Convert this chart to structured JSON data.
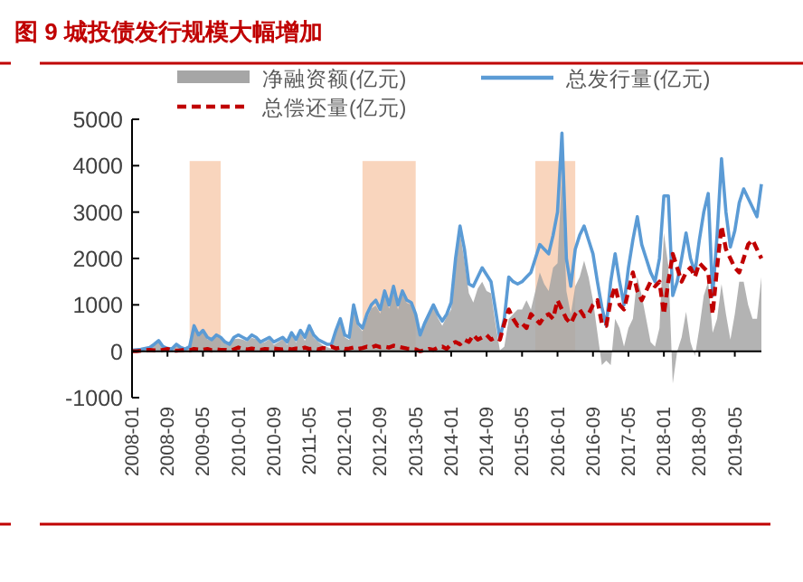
{
  "chart_data": {
    "type": "line",
    "title": "图 9  城投债发行规模大幅增加",
    "x": [
      "2008-01",
      "2008-02",
      "2008-03",
      "2008-04",
      "2008-05",
      "2008-06",
      "2008-07",
      "2008-08",
      "2008-09",
      "2008-10",
      "2008-11",
      "2008-12",
      "2009-01",
      "2009-02",
      "2009-03",
      "2009-04",
      "2009-05",
      "2009-06",
      "2009-07",
      "2009-08",
      "2009-09",
      "2009-10",
      "2009-11",
      "2009-12",
      "2010-01",
      "2010-02",
      "2010-03",
      "2010-04",
      "2010-05",
      "2010-06",
      "2010-07",
      "2010-08",
      "2010-09",
      "2010-10",
      "2010-11",
      "2010-12",
      "2011-01",
      "2011-02",
      "2011-03",
      "2011-04",
      "2011-05",
      "2011-06",
      "2011-07",
      "2011-08",
      "2011-09",
      "2011-10",
      "2011-11",
      "2011-12",
      "2012-01",
      "2012-02",
      "2012-03",
      "2012-04",
      "2012-05",
      "2012-06",
      "2012-07",
      "2012-08",
      "2012-09",
      "2012-10",
      "2012-11",
      "2012-12",
      "2013-01",
      "2013-02",
      "2013-03",
      "2013-04",
      "2013-05",
      "2013-06",
      "2013-07",
      "2013-08",
      "2013-09",
      "2013-10",
      "2013-11",
      "2013-12",
      "2014-01",
      "2014-02",
      "2014-03",
      "2014-04",
      "2014-05",
      "2014-06",
      "2014-07",
      "2014-08",
      "2014-09",
      "2014-10",
      "2014-11",
      "2014-12",
      "2015-01",
      "2015-02",
      "2015-03",
      "2015-04",
      "2015-05",
      "2015-06",
      "2015-07",
      "2015-08",
      "2015-09",
      "2015-10",
      "2015-11",
      "2015-12",
      "2016-01",
      "2016-02",
      "2016-03",
      "2016-04",
      "2016-05",
      "2016-06",
      "2016-07",
      "2016-08",
      "2016-09",
      "2016-10",
      "2016-11",
      "2016-12",
      "2017-01",
      "2017-02",
      "2017-03",
      "2017-04",
      "2017-05",
      "2017-06",
      "2017-07",
      "2017-08",
      "2017-09",
      "2017-10",
      "2017-11",
      "2017-12",
      "2018-01",
      "2018-02",
      "2018-03",
      "2018-04",
      "2018-05",
      "2018-06",
      "2018-07",
      "2018-08",
      "2018-09",
      "2018-10",
      "2018-11",
      "2018-12",
      "2019-01",
      "2019-02",
      "2019-03",
      "2019-04",
      "2019-05",
      "2019-06",
      "2019-07",
      "2019-08",
      "2019-09",
      "2019-10",
      "2019-11"
    ],
    "xlim": [
      "2008-01",
      "2019-11"
    ],
    "xticks": [
      "2008-01",
      "2008-09",
      "2009-05",
      "2010-01",
      "2010-09",
      "2011-05",
      "2012-01",
      "2012-09",
      "2013-05",
      "2014-01",
      "2014-09",
      "2015-05",
      "2016-01",
      "2016-09",
      "2017-05",
      "2018-01",
      "2018-09",
      "2019-05"
    ],
    "ylim": [
      -1000,
      5000
    ],
    "yticks": [
      -1000,
      0,
      1000,
      2000,
      3000,
      4000,
      5000
    ],
    "legend": "top",
    "series": [
      {
        "name": "净融资额(亿元)",
        "type": "area",
        "color": "#a6a6a6",
        "values": [
          20,
          30,
          30,
          40,
          50,
          130,
          220,
          70,
          10,
          30,
          140,
          60,
          20,
          80,
          500,
          310,
          420,
          250,
          230,
          310,
          270,
          170,
          130,
          260,
          270,
          250,
          210,
          290,
          260,
          170,
          200,
          260,
          140,
          200,
          260,
          140,
          360,
          190,
          400,
          220,
          500,
          290,
          210,
          130,
          90,
          50,
          390,
          620,
          300,
          240,
          920,
          550,
          430,
          700,
          920,
          980,
          810,
          1200,
          920,
          1280,
          900,
          1220,
          1040,
          1000,
          760,
          350,
          580,
          750,
          970,
          720,
          550,
          750,
          900,
          1800,
          2550,
          1950,
          1250,
          1050,
          1350,
          1500,
          1300,
          1250,
          600,
          20,
          100,
          700,
          800,
          900,
          900,
          1100,
          900,
          1300,
          1700,
          1450,
          1300,
          1800,
          1900,
          3800,
          1300,
          800,
          1400,
          1600,
          1950,
          1600,
          1100,
          400,
          -300,
          -200,
          -300,
          700,
          500,
          100,
          500,
          700,
          1600,
          1200,
          700,
          200,
          100,
          500,
          2550,
          1850,
          -700,
          0,
          300,
          850,
          200,
          -100,
          500,
          1200,
          1500,
          400,
          700,
          1450,
          800,
          250,
          800,
          1500,
          1500,
          1000,
          700,
          700,
          1600
        ]
      },
      {
        "name": "总发行量(亿元)",
        "type": "line",
        "line_style": "solid",
        "color": "#5b9bd5",
        "values": [
          20,
          30,
          40,
          60,
          80,
          150,
          230,
          100,
          60,
          50,
          150,
          80,
          50,
          100,
          550,
          350,
          450,
          300,
          250,
          350,
          300,
          200,
          150,
          300,
          350,
          300,
          250,
          350,
          300,
          200,
          250,
          300,
          200,
          250,
          300,
          200,
          400,
          250,
          450,
          300,
          550,
          350,
          250,
          200,
          150,
          150,
          450,
          700,
          350,
          300,
          1000,
          600,
          500,
          800,
          1000,
          1100,
          900,
          1300,
          1000,
          1400,
          1000,
          1300,
          1100,
          1050,
          800,
          350,
          600,
          800,
          1000,
          800,
          650,
          800,
          1050,
          2000,
          2700,
          2200,
          1450,
          1400,
          1600,
          1800,
          1650,
          1500,
          900,
          270,
          700,
          1600,
          1500,
          1450,
          1500,
          1600,
          1700,
          2000,
          2300,
          2200,
          2100,
          2500,
          3000,
          4700,
          2000,
          1400,
          2200,
          2500,
          2700,
          2400,
          2100,
          1500,
          950,
          550,
          1500,
          2100,
          1500,
          1000,
          1800,
          2400,
          2900,
          2300,
          2000,
          1700,
          1500,
          2000,
          3350,
          3350,
          1200,
          1500,
          2000,
          2550,
          2000,
          1700,
          2400,
          3000,
          3400,
          1200,
          2500,
          4150,
          3000,
          2250,
          2600,
          3200,
          3500,
          3300,
          3100,
          2900,
          3600
        ]
      },
      {
        "name": "总偿还量(亿元)",
        "type": "line",
        "line_style": "dashed",
        "color": "#c00000",
        "values": [
          0,
          0,
          10,
          20,
          30,
          20,
          10,
          30,
          50,
          20,
          10,
          20,
          30,
          20,
          50,
          40,
          30,
          50,
          20,
          40,
          30,
          30,
          20,
          40,
          80,
          50,
          40,
          60,
          40,
          30,
          50,
          40,
          60,
          50,
          40,
          60,
          40,
          60,
          50,
          80,
          50,
          60,
          40,
          70,
          60,
          100,
          60,
          80,
          50,
          60,
          80,
          50,
          70,
          100,
          80,
          120,
          90,
          100,
          80,
          120,
          100,
          80,
          60,
          50,
          40,
          0,
          20,
          50,
          30,
          80,
          100,
          50,
          150,
          200,
          150,
          250,
          200,
          350,
          250,
          300,
          350,
          250,
          300,
          250,
          600,
          900,
          700,
          550,
          600,
          500,
          800,
          700,
          600,
          750,
          800,
          700,
          1100,
          900,
          700,
          600,
          800,
          900,
          750,
          800,
          1000,
          1100,
          600,
          550,
          1100,
          1400,
          1000,
          900,
          1300,
          1700,
          1300,
          1100,
          1300,
          1500,
          1400,
          1500,
          800,
          1500,
          2100,
          1800,
          1500,
          1700,
          1800,
          1600,
          1900,
          1800,
          1700,
          800,
          1800,
          2700,
          2200,
          2000,
          1800,
          1700,
          2000,
          2300,
          2400,
          2200,
          2000
        ]
      }
    ],
    "bands": [
      {
        "axis": "x",
        "from": "2009-02",
        "to": "2009-09",
        "color": "#f8cbad"
      },
      {
        "axis": "x",
        "from": "2012-05",
        "to": "2013-05",
        "color": "#f8cbad"
      },
      {
        "axis": "x",
        "from": "2015-08",
        "to": "2016-05",
        "color": "#f8cbad"
      }
    ]
  }
}
